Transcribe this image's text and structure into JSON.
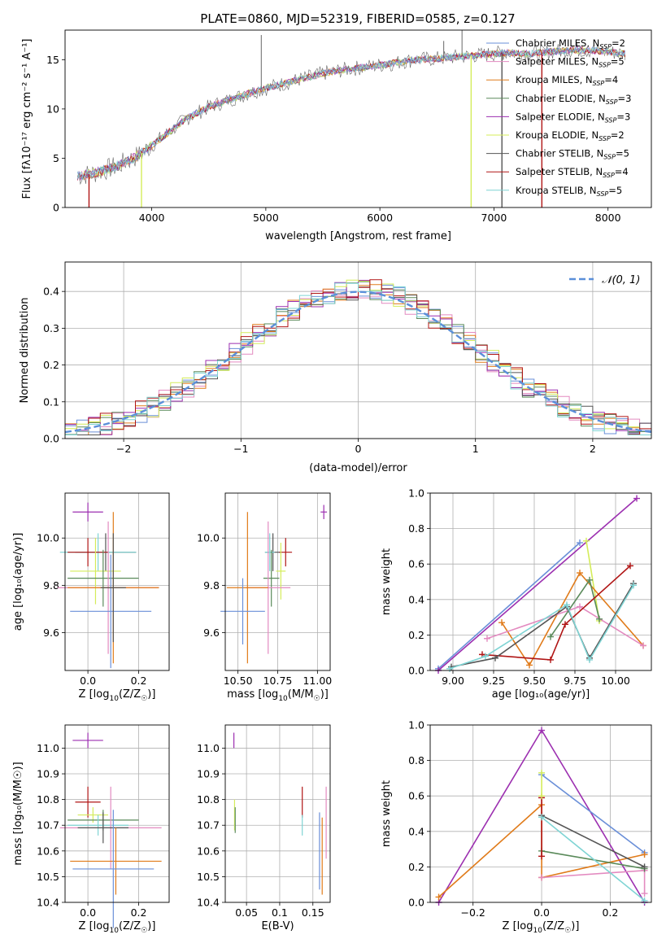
{
  "colors": {
    "chabrier_miles": "#6a8fd8",
    "salpeter_miles": "#e38ac0",
    "kroupa_miles": "#e07b1a",
    "chabrier_elodie": "#5a8a5a",
    "salpeter_elodie": "#9c2fb0",
    "kroupa_elodie": "#d4ec5a",
    "chabrier_stelib": "#555555",
    "salpeter_stelib": "#b01515",
    "kroupa_stelib": "#7fd4d4",
    "gaussian": "#5b8fd9"
  },
  "chart_data": [
    {
      "id": "spectrum",
      "type": "line",
      "title": "PLATE=0860, MJD=52319, FIBERID=0585, z=0.127",
      "xlabel": "wavelength [Angstrom, rest frame]",
      "ylabel": "Flux [fλ10⁻¹⁷ erg cm⁻² s⁻¹ A⁻¹]",
      "xlim": [
        3240,
        8380
      ],
      "ylim": [
        0,
        18
      ],
      "xticks": [
        4000,
        5000,
        6000,
        7000,
        8000
      ],
      "yticks": [
        0,
        5,
        10,
        15
      ],
      "grid": false,
      "legend_position": "top-right",
      "legend": [
        {
          "key": "chabrier_miles",
          "label": "Chabrier MILES, N",
          "sub": "SSP",
          "suffix": "=2"
        },
        {
          "key": "salpeter_miles",
          "label": "Salpeter MILES, N",
          "sub": "SSP",
          "suffix": "=5"
        },
        {
          "key": "kroupa_miles",
          "label": "Kroupa MILES, N",
          "sub": "SSP",
          "suffix": "=4"
        },
        {
          "key": "chabrier_elodie",
          "label": "Chabrier ELODIE, N",
          "sub": "SSP",
          "suffix": "=3"
        },
        {
          "key": "salpeter_elodie",
          "label": "Salpeter ELODIE, N",
          "sub": "SSP",
          "suffix": "=3"
        },
        {
          "key": "kroupa_elodie",
          "label": "Kroupa ELODIE, N",
          "sub": "SSP",
          "suffix": "=2"
        },
        {
          "key": "chabrier_stelib",
          "label": "Chabrier STELIB, N",
          "sub": "SSP",
          "suffix": "=5"
        },
        {
          "key": "salpeter_stelib",
          "label": "Salpeter STELIB, N",
          "sub": "SSP",
          "suffix": "=4"
        },
        {
          "key": "kroupa_stelib",
          "label": "Kroupa STELIB, N",
          "sub": "SSP",
          "suffix": "=5"
        }
      ],
      "continuum": [
        [
          3350,
          3.2
        ],
        [
          3500,
          3.5
        ],
        [
          3700,
          4.2
        ],
        [
          3900,
          5.4
        ],
        [
          4100,
          7.2
        ],
        [
          4300,
          9.0
        ],
        [
          4500,
          10.2
        ],
        [
          4700,
          11.0
        ],
        [
          4900,
          11.8
        ],
        [
          5100,
          12.4
        ],
        [
          5300,
          13.0
        ],
        [
          5500,
          13.6
        ],
        [
          5700,
          14.0
        ],
        [
          5900,
          14.3
        ],
        [
          6100,
          14.6
        ],
        [
          6300,
          15.0
        ],
        [
          6500,
          15.1
        ],
        [
          6700,
          15.3
        ],
        [
          6900,
          15.5
        ],
        [
          7100,
          15.7
        ],
        [
          7300,
          15.6
        ],
        [
          7500,
          15.8
        ],
        [
          7700,
          16.0
        ],
        [
          7900,
          15.9
        ],
        [
          8150,
          15.6
        ]
      ],
      "spikes": [
        [
          4960,
          17.5
        ],
        [
          6560,
          16.9
        ],
        [
          6720,
          18.0
        ]
      ],
      "drops": [
        {
          "key": "salpeter_stelib",
          "x": 3450
        },
        {
          "key": "kroupa_elodie",
          "x": 3910
        },
        {
          "key": "kroupa_elodie",
          "x": 6800
        },
        {
          "key": "chabrier_stelib",
          "x": 7070
        },
        {
          "key": "salpeter_stelib",
          "x": 7420
        }
      ]
    },
    {
      "id": "residuals",
      "type": "histogram",
      "xlabel": "(data-model)/error",
      "ylabel": "Normed distribution",
      "xlim": [
        -2.5,
        2.5
      ],
      "ylim": [
        0,
        0.48
      ],
      "xticks": [
        -2,
        -1,
        0,
        1,
        2
      ],
      "yticks": [
        0.0,
        0.1,
        0.2,
        0.3,
        0.4
      ],
      "grid": true,
      "legend": [
        {
          "key": "gaussian",
          "label": "𝒩(0, 1)"
        }
      ],
      "legend_position": "top-right",
      "bin_width": 0.1
    },
    {
      "id": "age_vs_Z",
      "type": "scatter",
      "xlabel_main": "Z [log",
      "xlabel_sub": "10",
      "xlabel_rest": "(Z/Z",
      "xlabel_sun": "☉",
      "xlabel_end": ")]",
      "ylabel": "age  [log₁₀(age/yr)]",
      "xlim": [
        -0.09,
        0.32
      ],
      "ylim": [
        9.44,
        10.19
      ],
      "xticks": [
        0.0,
        0.2
      ],
      "yticks": [
        9.6,
        9.8,
        10.0
      ],
      "grid": true,
      "points": [
        {
          "key": "salpeter_elodie",
          "x": 0.0,
          "y": 10.11,
          "xerr": 0.06,
          "yerr": 0.04
        },
        {
          "key": "chabrier_stelib",
          "x": 0.07,
          "y": 9.94,
          "xerr": 0.12,
          "yerr": 0.08
        },
        {
          "key": "kroupa_stelib",
          "x": 0.04,
          "y": 9.94,
          "xerr": 0.15,
          "yerr": 0.08
        },
        {
          "key": "salpeter_stelib",
          "x": 0.0,
          "y": 9.94,
          "xerr": 0.08,
          "yerr": 0.06
        },
        {
          "key": "kroupa_elodie",
          "x": 0.03,
          "y": 9.86,
          "xerr": 0.1,
          "yerr": 0.14
        },
        {
          "key": "chabrier_elodie",
          "x": 0.06,
          "y": 9.83,
          "xerr": 0.14,
          "yerr": 0.12
        },
        {
          "key": "salpeter_miles",
          "x": 0.08,
          "y": 9.79,
          "xerr": 0.2,
          "yerr": 0.28
        },
        {
          "key": "kroupa_miles",
          "x": 0.1,
          "y": 9.79,
          "xerr": 0.18,
          "yerr": 0.32
        },
        {
          "key": "chabrier_miles",
          "x": 0.09,
          "y": 9.69,
          "xerr": 0.16,
          "yerr": 0.24
        },
        {
          "key": "chabrier_stelib",
          "x": 0.1,
          "y": 9.79,
          "xerr": 0.05,
          "yerr": 0.23
        }
      ]
    },
    {
      "id": "age_vs_mass",
      "type": "scatter",
      "xlabel_main": "mass [log",
      "xlabel_sub": "10",
      "xlabel_rest": "(M/M",
      "xlabel_sun": "☉",
      "xlabel_end": ")]",
      "xlim": [
        10.42,
        11.08
      ],
      "ylim": [
        9.44,
        10.19
      ],
      "xticks": [
        10.5,
        10.75,
        11.0
      ],
      "xtick_labels": [
        "10.50",
        "10.75",
        "11.00"
      ],
      "yticks": [
        9.6,
        9.8,
        10.0
      ],
      "grid": true,
      "points": [
        {
          "key": "salpeter_elodie",
          "x": 11.04,
          "y": 10.11,
          "xerr": 0.02,
          "yerr": 0.03
        },
        {
          "key": "chabrier_stelib",
          "x": 10.72,
          "y": 9.94,
          "xerr": 0.05,
          "yerr": 0.08
        },
        {
          "key": "kroupa_stelib",
          "x": 10.7,
          "y": 9.94,
          "xerr": 0.03,
          "yerr": 0.08
        },
        {
          "key": "salpeter_stelib",
          "x": 10.8,
          "y": 9.94,
          "xerr": 0.04,
          "yerr": 0.06
        },
        {
          "key": "kroupa_elodie",
          "x": 10.77,
          "y": 9.86,
          "xerr": 0.03,
          "yerr": 0.12
        },
        {
          "key": "chabrier_elodie",
          "x": 10.71,
          "y": 9.83,
          "xerr": 0.05,
          "yerr": 0.12
        },
        {
          "key": "salpeter_miles",
          "x": 10.69,
          "y": 9.79,
          "xerr": 0.14,
          "yerr": 0.28
        },
        {
          "key": "kroupa_miles",
          "x": 10.56,
          "y": 9.79,
          "xerr": 0.13,
          "yerr": 0.32
        },
        {
          "key": "chabrier_miles",
          "x": 10.53,
          "y": 9.69,
          "xerr": 0.14,
          "yerr": 0.14
        }
      ]
    },
    {
      "id": "massweight_vs_age",
      "type": "line",
      "xlabel": "age  [log₁₀(age/yr)]",
      "ylabel": "mass weight",
      "xlim": [
        8.86,
        10.22
      ],
      "ylim": [
        0,
        1
      ],
      "xticks": [
        9.0,
        9.25,
        9.5,
        9.75,
        10.0
      ],
      "xtick_labels": [
        "9.00",
        "9.25",
        "9.50",
        "9.75",
        "10.00"
      ],
      "yticks": [
        0.0,
        0.2,
        0.4,
        0.6,
        0.8,
        1.0
      ],
      "grid": true,
      "series": [
        {
          "key": "chabrier_miles",
          "x": [
            8.91,
            9.78
          ],
          "y": [
            0.01,
            0.72
          ]
        },
        {
          "key": "salpeter_elodie",
          "x": [
            8.91,
            10.13
          ],
          "y": [
            0.0,
            0.97
          ]
        },
        {
          "key": "kroupa_elodie",
          "x": [
            9.82,
            9.9
          ],
          "y": [
            0.73,
            0.28
          ]
        },
        {
          "key": "kroupa_miles",
          "x": [
            9.3,
            9.47,
            9.78,
            10.17
          ],
          "y": [
            0.27,
            0.03,
            0.55,
            0.14
          ]
        },
        {
          "key": "salpeter_miles",
          "x": [
            9.21,
            9.78,
            10.17
          ],
          "y": [
            0.18,
            0.36,
            0.14
          ]
        },
        {
          "key": "chabrier_elodie",
          "x": [
            9.6,
            9.84,
            9.9
          ],
          "y": [
            0.19,
            0.51,
            0.29
          ]
        },
        {
          "key": "salpeter_stelib",
          "x": [
            9.18,
            9.6,
            9.69,
            10.09
          ],
          "y": [
            0.09,
            0.06,
            0.26,
            0.59
          ]
        },
        {
          "key": "chabrier_stelib",
          "x": [
            8.99,
            9.26,
            9.7,
            9.84,
            10.11
          ],
          "y": [
            0.02,
            0.07,
            0.36,
            0.07,
            0.49
          ]
        },
        {
          "key": "kroupa_stelib",
          "x": [
            8.98,
            9.2,
            9.7,
            9.84,
            10.11
          ],
          "y": [
            0.01,
            0.08,
            0.37,
            0.06,
            0.48
          ]
        }
      ]
    },
    {
      "id": "mass_vs_Z",
      "type": "scatter",
      "xlabel_main": "Z [log",
      "xlabel_sub": "10",
      "xlabel_rest": "(Z/Z",
      "xlabel_sun": "☉",
      "xlabel_end": ")]",
      "ylabel": "mass [log₁₀(M/M☉)]",
      "xlim": [
        -0.09,
        0.32
      ],
      "ylim": [
        10.4,
        11.09
      ],
      "xticks": [
        0.0,
        0.2
      ],
      "yticks": [
        10.4,
        10.5,
        10.6,
        10.7,
        10.8,
        10.9,
        11.0
      ],
      "grid": true,
      "points": [
        {
          "key": "salpeter_elodie",
          "x": 0.0,
          "y": 11.03,
          "xerr": 0.06,
          "yerr": 0.03
        },
        {
          "key": "salpeter_stelib",
          "x": 0.0,
          "y": 10.79,
          "xerr": 0.05,
          "yerr": 0.06
        },
        {
          "key": "kroupa_elodie",
          "x": 0.02,
          "y": 10.74,
          "xerr": 0.06,
          "yerr": 0.03
        },
        {
          "key": "chabrier_elodie",
          "x": 0.06,
          "y": 10.72,
          "xerr": 0.14,
          "yerr": 0.04
        },
        {
          "key": "kroupa_stelib",
          "x": 0.04,
          "y": 10.7,
          "xerr": 0.12,
          "yerr": 0.04
        },
        {
          "key": "salpeter_miles",
          "x": 0.09,
          "y": 10.69,
          "xerr": 0.2,
          "yerr": 0.16
        },
        {
          "key": "chabrier_stelib",
          "x": 0.06,
          "y": 10.69,
          "xerr": 0.1,
          "yerr": 0.06
        },
        {
          "key": "kroupa_miles",
          "x": 0.11,
          "y": 10.56,
          "xerr": 0.18,
          "yerr": 0.13
        },
        {
          "key": "chabrier_miles",
          "x": 0.1,
          "y": 10.53,
          "xerr": 0.16,
          "yerr": 0.23
        }
      ]
    },
    {
      "id": "mass_vs_ebv",
      "type": "scatter",
      "xlabel": "E(B-V)",
      "xlim": [
        0.018,
        0.176
      ],
      "ylim": [
        10.4,
        11.09
      ],
      "xticks": [
        0.05,
        0.1,
        0.15
      ],
      "yticks": [
        10.4,
        10.5,
        10.6,
        10.7,
        10.8,
        10.9,
        11.0
      ],
      "grid": true,
      "points": [
        {
          "key": "salpeter_elodie",
          "x": 0.031,
          "y": 11.03,
          "xerr": 0,
          "yerr": 0.03
        },
        {
          "key": "kroupa_elodie",
          "x": 0.032,
          "y": 10.74,
          "xerr": 0,
          "yerr": 0.06
        },
        {
          "key": "chabrier_elodie",
          "x": 0.033,
          "y": 10.72,
          "xerr": 0,
          "yerr": 0.05
        },
        {
          "key": "salpeter_stelib",
          "x": 0.134,
          "y": 10.79,
          "xerr": 0,
          "yerr": 0.06
        },
        {
          "key": "kroupa_stelib",
          "x": 0.134,
          "y": 10.7,
          "xerr": 0,
          "yerr": 0.04
        },
        {
          "key": "chabrier_miles",
          "x": 0.16,
          "y": 10.6,
          "xerr": 0,
          "yerr": 0.15
        },
        {
          "key": "kroupa_miles",
          "x": 0.164,
          "y": 10.58,
          "xerr": 0,
          "yerr": 0.15
        },
        {
          "key": "salpeter_miles",
          "x": 0.17,
          "y": 10.71,
          "xerr": 0,
          "yerr": 0.14
        }
      ]
    },
    {
      "id": "massweight_vs_Z",
      "type": "line",
      "xlabel_main": "Z [log",
      "xlabel_sub": "10",
      "xlabel_rest": "(Z/Z",
      "xlabel_sun": "☉",
      "xlabel_end": ")]",
      "ylabel": "mass weight",
      "xlim": [
        -0.325,
        0.32
      ],
      "ylim": [
        0,
        1
      ],
      "xticks": [
        -0.2,
        0.0,
        0.2
      ],
      "xtick_labels": [
        "−0.2",
        "0.0",
        "0.2"
      ],
      "yticks": [
        0.0,
        0.2,
        0.4,
        0.6,
        0.8,
        1.0
      ],
      "grid": true,
      "series": [
        {
          "key": "salpeter_elodie",
          "x": [
            -0.3,
            0.0,
            0.3
          ],
          "y": [
            0.0,
            0.97,
            0.0
          ]
        },
        {
          "key": "chabrier_miles",
          "x": [
            0.0,
            0.3
          ],
          "y": [
            0.72,
            0.28
          ]
        },
        {
          "key": "kroupa_miles",
          "x": [
            -0.3,
            0.0,
            0.0,
            0.3
          ],
          "y": [
            0.03,
            0.55,
            0.14,
            0.27
          ]
        },
        {
          "key": "salpeter_miles",
          "x": [
            0.0,
            0.3,
            0.3
          ],
          "y": [
            0.14,
            0.18,
            0.05
          ]
        },
        {
          "key": "chabrier_elodie",
          "x": [
            0.0,
            0.3
          ],
          "y": [
            0.29,
            0.19
          ]
        },
        {
          "key": "chabrier_stelib",
          "x": [
            0.0,
            0.3
          ],
          "y": [
            0.49,
            0.2
          ]
        },
        {
          "key": "salpeter_stelib",
          "x": [
            0.0,
            0.0
          ],
          "y": [
            0.59,
            0.26
          ]
        },
        {
          "key": "kroupa_stelib",
          "x": [
            0.0,
            0.3
          ],
          "y": [
            0.48,
            0.01
          ]
        },
        {
          "key": "kroupa_elodie",
          "x": [
            0.0,
            0.0
          ],
          "y": [
            0.73,
            0.6
          ]
        }
      ]
    }
  ]
}
